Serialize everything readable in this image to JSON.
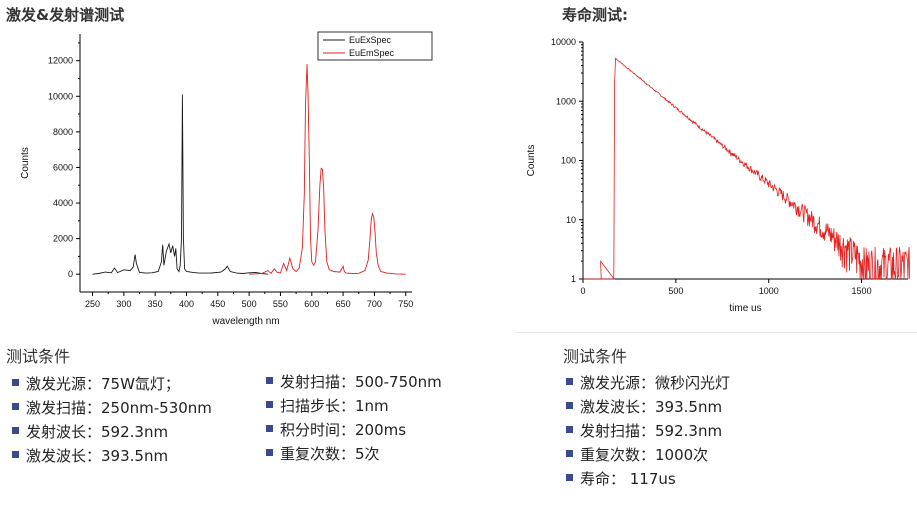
{
  "titles": {
    "excitation": "激发&发射谱测试",
    "lifetime": "寿命测试:"
  },
  "chart_data": [
    {
      "type": "line",
      "xlabel": "wavelength nm",
      "ylabel": "Counts",
      "xlim": [
        230,
        760
      ],
      "ylim": [
        -1000,
        13500
      ],
      "xticks": [
        250,
        300,
        350,
        400,
        450,
        500,
        550,
        600,
        650,
        700,
        750
      ],
      "yticks": [
        0,
        2000,
        4000,
        6000,
        8000,
        10000,
        12000
      ],
      "legend_position": "top-right",
      "series": [
        {
          "name": "EuExSpec",
          "color": "#1a1a1a",
          "x": [
            250,
            260,
            270,
            280,
            285,
            290,
            300,
            310,
            315,
            318,
            320,
            325,
            335,
            345,
            355,
            360,
            362,
            364,
            368,
            372,
            375,
            378,
            381,
            383,
            385,
            388,
            390,
            392,
            393.5,
            394,
            395,
            397,
            400,
            410,
            420,
            440,
            455,
            462,
            465,
            470,
            480,
            490,
            500,
            510,
            520,
            530
          ],
          "y": [
            0,
            40,
            120,
            80,
            350,
            90,
            250,
            200,
            400,
            1100,
            600,
            100,
            60,
            80,
            150,
            700,
            1650,
            500,
            1300,
            1700,
            1200,
            1600,
            1000,
            1450,
            300,
            150,
            500,
            2000,
            10100,
            7800,
            2000,
            300,
            150,
            100,
            60,
            70,
            120,
            300,
            450,
            150,
            60,
            40,
            80,
            100,
            40,
            0
          ]
        },
        {
          "name": "EuEmSpec",
          "color": "#e02020",
          "x": [
            500,
            520,
            530,
            535,
            540,
            545,
            550,
            555,
            560,
            565,
            570,
            575,
            580,
            585,
            588,
            590,
            592.3,
            594,
            596,
            598,
            600,
            603,
            606,
            610,
            613,
            615,
            617,
            619,
            621,
            624,
            628,
            635,
            645,
            650,
            652,
            655,
            665,
            675,
            685,
            690,
            693,
            695,
            697,
            699,
            701,
            703,
            706,
            710,
            720,
            735,
            750
          ],
          "y": [
            0,
            40,
            200,
            50,
            300,
            100,
            80,
            600,
            200,
            900,
            300,
            150,
            350,
            1500,
            4500,
            9500,
            11800,
            10200,
            6500,
            2000,
            700,
            500,
            700,
            2500,
            5000,
            5950,
            5900,
            4800,
            2500,
            700,
            250,
            150,
            120,
            450,
            150,
            60,
            40,
            50,
            200,
            800,
            2000,
            3100,
            3400,
            3200,
            2400,
            1200,
            500,
            150,
            60,
            20,
            0
          ]
        }
      ]
    },
    {
      "type": "line",
      "xlabel": "time us",
      "ylabel": "Counts",
      "yscale": "log",
      "xlim": [
        0,
        1750
      ],
      "ylim": [
        1,
        10000
      ],
      "xticks": [
        0,
        500,
        1000,
        1500
      ],
      "yticks": [
        1,
        10,
        100,
        1000,
        10000
      ],
      "series": [
        {
          "color": "#e02020",
          "lifetime_us": 117,
          "t0_us": 170,
          "peak_counts": 5300,
          "t_end_us": 1760
        }
      ]
    }
  ],
  "excitation_conditions": {
    "heading": "测试条件",
    "col1": [
      "激发光源：75W氙灯；",
      "激发扫描：250nm-530nm",
      "发射波长：592.3nm",
      "激发波长：393.5nm"
    ],
    "col2": [
      "发射扫描：500-750nm",
      "扫描步长：1nm",
      "积分时间：200ms",
      "重复次数：5次"
    ]
  },
  "lifetime_conditions": {
    "heading": "测试条件",
    "items": [
      "激发光源：微秒闪光灯",
      "激发波长：393.5nm",
      "发射扫描：592.3nm",
      "重复次数：1000次",
      "寿命： 117us"
    ]
  }
}
